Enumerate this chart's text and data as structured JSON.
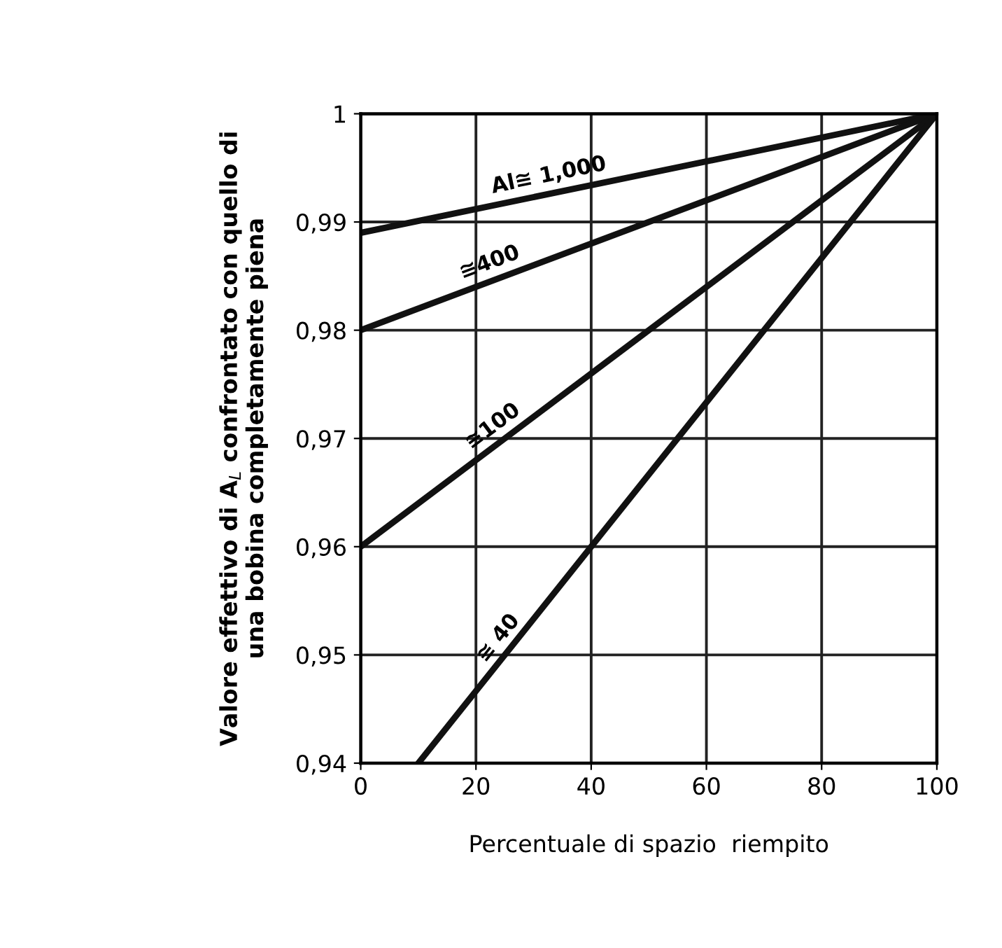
{
  "chart_data": {
    "type": "line",
    "xlabel": "Percentuale di spazio  riempito",
    "ylabel": "Valore effettivo di A$_{L}$ confrontato con quello di\nuna bobina completamente piena",
    "series": [
      {
        "name": "Al≅ 1,000",
        "color": "#111111",
        "x": [
          0,
          100
        ],
        "values": [
          0.989,
          1.0
        ]
      },
      {
        "name": "≅400",
        "color": "#111111",
        "x": [
          0,
          100
        ],
        "values": [
          0.98,
          1.0
        ]
      },
      {
        "name": "≅100",
        "color": "#111111",
        "x": [
          0,
          100
        ],
        "values": [
          0.96,
          1.0
        ]
      },
      {
        "name": "≅ 40",
        "color": "#111111",
        "x": [
          10,
          100
        ],
        "values": [
          0.94,
          1.0
        ]
      }
    ],
    "xlim": [
      0,
      100
    ],
    "xticks": [
      0,
      20,
      40,
      60,
      80,
      100
    ],
    "ylim": [
      0.94,
      1.0
    ],
    "yticks": [
      {
        "value": 0.94,
        "label": "0,94"
      },
      {
        "value": 0.95,
        "label": "0,95"
      },
      {
        "value": 0.96,
        "label": "0,96"
      },
      {
        "value": 0.97,
        "label": "0,97"
      },
      {
        "value": 0.98,
        "label": "0,98"
      },
      {
        "value": 0.99,
        "label": "0,99"
      },
      {
        "value": 1.0,
        "label": "1"
      }
    ],
    "grid": true,
    "marker": "none",
    "line_style": "solid"
  }
}
